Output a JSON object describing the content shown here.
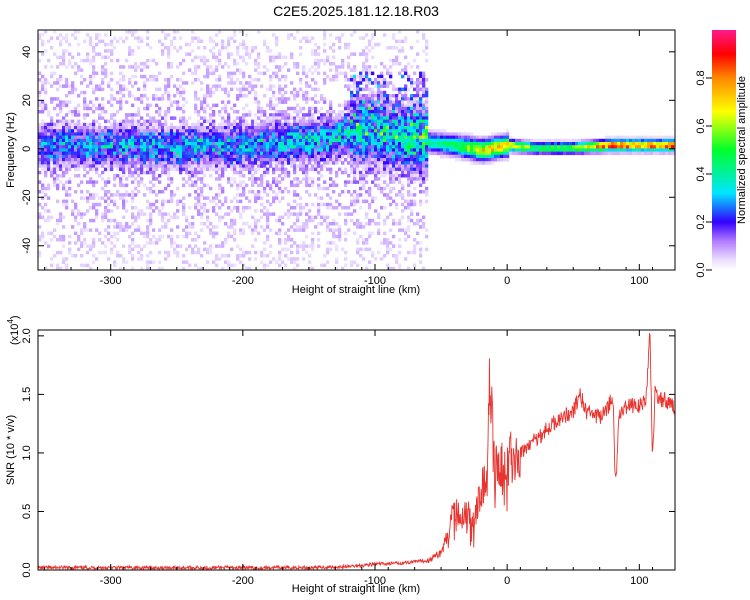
{
  "title": "C2E5.2025.181.12.18.R03",
  "chart_data": [
    {
      "type": "heatmap",
      "xlabel": "Height of straight line (km)",
      "ylabel": "Frequency (Hz)",
      "xlim": [
        -355,
        127
      ],
      "ylim": [
        -50,
        49
      ],
      "xticks": [
        -300,
        -200,
        -100,
        0,
        100
      ],
      "yticks": [
        -40,
        -20,
        0,
        20,
        40
      ],
      "colorbar": {
        "label": "Normalized spectral amplitude",
        "range": [
          0,
          1
        ],
        "ticks": [
          "0.0",
          "0.2",
          "0.4",
          "0.6",
          "0.8"
        ],
        "tick_values": [
          0.0,
          0.2,
          0.4,
          0.6,
          0.8
        ],
        "colormap": "rainbow",
        "colors": [
          "#ffffff",
          "#d9c0ff",
          "#8a2be2",
          "#2b00ff",
          "#00e5ff",
          "#00ff2a",
          "#ffff00",
          "#ff8800",
          "#ff0000",
          "#ff1a8c"
        ]
      },
      "ridge": [
        {
          "x": -350,
          "f": 2,
          "a": 0.22
        },
        {
          "x": -300,
          "f": 2,
          "a": 0.24
        },
        {
          "x": -250,
          "f": 1,
          "a": 0.24
        },
        {
          "x": -200,
          "f": 2,
          "a": 0.25
        },
        {
          "x": -150,
          "f": 4,
          "a": 0.28
        },
        {
          "x": -110,
          "f": 8,
          "a": 0.3
        },
        {
          "x": -80,
          "f": 5,
          "a": 0.32
        },
        {
          "x": -55,
          "f": 3,
          "a": 0.4
        },
        {
          "x": -40,
          "f": 2,
          "a": 0.48
        },
        {
          "x": -20,
          "f": 0,
          "a": 0.7
        },
        {
          "x": 0,
          "f": 2,
          "a": 0.72
        },
        {
          "x": 20,
          "f": 1,
          "a": 0.5
        },
        {
          "x": 50,
          "f": 1,
          "a": 0.55
        },
        {
          "x": 75,
          "f": 2,
          "a": 0.85
        },
        {
          "x": 100,
          "f": 2,
          "a": 0.8
        },
        {
          "x": 125,
          "f": 2,
          "a": 0.85
        }
      ]
    },
    {
      "type": "line",
      "xlabel": "Height of straight line (km)",
      "ylabel": "SNR (10 * v/v)",
      "multiplier": "(x10",
      "multiplier_exp": "4",
      "xlim": [
        -355,
        127
      ],
      "ylim": [
        0,
        2.05
      ],
      "xticks": [
        -300,
        -200,
        -100,
        0,
        100
      ],
      "yticks": [
        "0.0",
        "0.5",
        "1.0",
        "1.5",
        "2.0"
      ],
      "ytick_values": [
        0.0,
        0.5,
        1.0,
        1.5,
        2.0
      ],
      "color": "#e8332e",
      "series": [
        {
          "x": [
            -355,
            -300,
            -250,
            -200,
            -150,
            -120,
            -100,
            -80,
            -60,
            -50,
            -45,
            -40,
            -35,
            -30,
            -25,
            -20,
            -15,
            -13,
            -10,
            -5,
            0,
            5,
            10,
            20,
            30,
            40,
            50,
            55,
            60,
            70,
            75,
            80,
            82,
            85,
            90,
            100,
            105,
            108,
            110,
            112,
            115,
            120,
            127
          ],
          "y": [
            0.02,
            0.02,
            0.02,
            0.02,
            0.02,
            0.03,
            0.05,
            0.06,
            0.08,
            0.15,
            0.3,
            0.55,
            0.45,
            0.5,
            0.4,
            0.7,
            0.8,
            1.75,
            0.9,
            0.85,
            0.95,
            0.95,
            1.0,
            1.1,
            1.2,
            1.3,
            1.35,
            1.5,
            1.35,
            1.3,
            1.35,
            1.5,
            0.7,
            1.35,
            1.4,
            1.4,
            1.45,
            2.02,
            0.95,
            1.55,
            1.45,
            1.45,
            1.4
          ]
        }
      ]
    }
  ]
}
